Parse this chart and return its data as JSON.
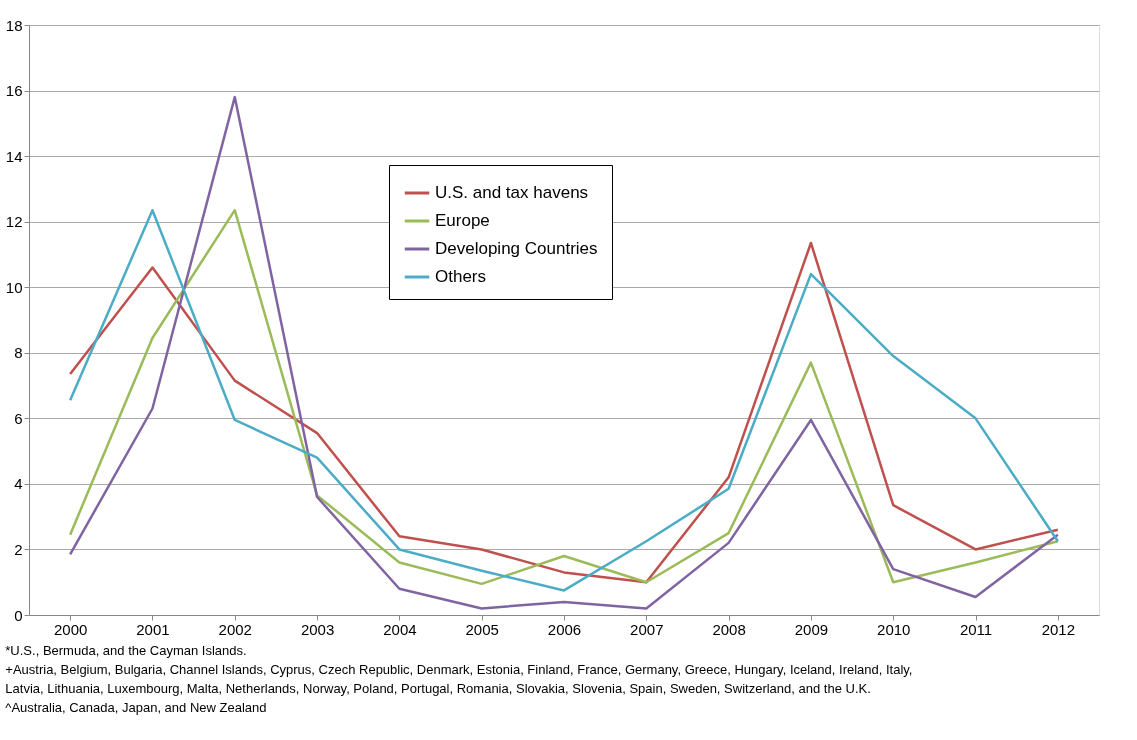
{
  "chart_data": {
    "type": "line",
    "categories": [
      "2000",
      "2001",
      "2002",
      "2003",
      "2004",
      "2005",
      "2006",
      "2007",
      "2008",
      "2009",
      "2010",
      "2011",
      "2012"
    ],
    "series": [
      {
        "name": "U.S. and tax havens",
        "color": "#c0504d",
        "values": [
          7.35,
          10.6,
          7.15,
          5.55,
          2.4,
          2.0,
          1.3,
          1.0,
          4.2,
          11.35,
          3.35,
          2.0,
          2.6
        ]
      },
      {
        "name": "Europe",
        "color": "#9bbb59",
        "values": [
          2.45,
          8.45,
          12.35,
          3.65,
          1.6,
          0.95,
          1.8,
          1.0,
          2.5,
          7.7,
          1.0,
          1.6,
          2.25
        ]
      },
      {
        "name": "Developing Countries",
        "color": "#8064a2",
        "values": [
          1.85,
          6.3,
          15.8,
          3.6,
          0.8,
          0.2,
          0.4,
          0.2,
          2.2,
          5.95,
          1.4,
          0.55,
          2.45
        ]
      },
      {
        "name": "Others",
        "color": "#4bacc6",
        "values": [
          6.55,
          12.35,
          5.95,
          4.8,
          2.0,
          1.35,
          0.75,
          2.25,
          3.85,
          10.4,
          7.9,
          6.0,
          2.25
        ]
      }
    ],
    "ylim": [
      0,
      18
    ],
    "yticks": [
      0,
      2,
      4,
      6,
      8,
      10,
      12,
      14,
      16,
      18
    ],
    "grid": "y",
    "legend": "top",
    "marker": "none",
    "line_style": "solid",
    "annotations": [
      "*U.S., Bermuda, and the Cayman Islands.",
      "+Austria, Belgium, Bulgaria, Channel Islands, Cyprus, Czech Republic, Denmark, Estonia, Finland, France, Germany, Greece, Hungary, Iceland, Ireland, Italy,",
      "Latvia, Lithuania, Luxembourg, Malta, Netherlands, Norway, Poland, Portugal, Romania, Slovakia, Slovenia, Spain, Sweden, Switzerland, and the U.K.",
      "^Australia, Canada, Japan, and New Zealand"
    ]
  }
}
